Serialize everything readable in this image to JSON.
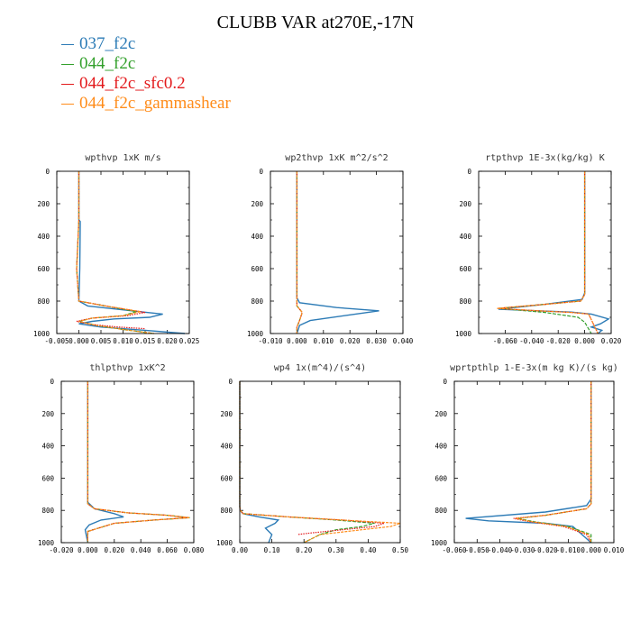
{
  "title": "CLUBB VAR at270E,-17N",
  "legend": [
    {
      "label": "037_f2c",
      "color": "#2c7bb6"
    },
    {
      "label": "044_f2c",
      "color": "#33a02c"
    },
    {
      "label": "044_f2c_sfc0.2",
      "color": "#e31a1c"
    },
    {
      "label": "044_f2c_gammashear",
      "color": "#ff8c1a"
    }
  ],
  "chart_data": [
    {
      "type": "line",
      "title": "wpthvp  1xK m/s",
      "xlim": [
        -0.005,
        0.025
      ],
      "ylim": [
        1000,
        0
      ],
      "xticks": [
        "-0.005",
        "0.000",
        "0.005",
        "0.010",
        "0.015",
        "0.020",
        "0.025"
      ],
      "yticks": [
        "0",
        "200",
        "400",
        "600",
        "800",
        "1000"
      ],
      "series": [
        {
          "name": "037_f2c",
          "x": [
            0.0,
            0.0,
            0.0003,
            0.0003,
            0.0002,
            0.0,
            0.002,
            0.012,
            0.019,
            0.016,
            0.008,
            0.003,
            0.0,
            0.005,
            0.015,
            0.024
          ],
          "y": [
            0,
            300,
            310,
            330,
            600,
            800,
            830,
            860,
            880,
            900,
            910,
            925,
            940,
            960,
            980,
            1000
          ]
        },
        {
          "name": "044_f2c",
          "x": [
            0.0,
            0.0,
            -0.0005,
            0.0,
            0.006,
            0.013,
            0.01,
            0.003,
            0.0,
            0.004,
            0.01,
            0.017
          ],
          "y": [
            0,
            300,
            600,
            800,
            830,
            865,
            890,
            905,
            925,
            950,
            975,
            1000
          ]
        },
        {
          "name": "044_f2c_sfc0.2",
          "x": [
            0.0,
            0.0,
            -0.0005,
            0.0,
            0.006,
            0.015,
            0.011,
            0.003,
            -0.0005,
            0.003,
            0.009,
            0.015
          ],
          "y": [
            0,
            300,
            600,
            800,
            830,
            870,
            890,
            905,
            925,
            945,
            960,
            970
          ]
        },
        {
          "name": "044_f2c_gammashear",
          "x": [
            0.0,
            0.0,
            -0.0005,
            0.0,
            0.006,
            0.014,
            0.01,
            0.003,
            0.0,
            0.004,
            0.01,
            0.017
          ],
          "y": [
            0,
            300,
            600,
            800,
            830,
            865,
            890,
            905,
            925,
            950,
            975,
            1000
          ]
        }
      ]
    },
    {
      "type": "line",
      "title": "wp2thvp  1xK m^2/s^2",
      "xlim": [
        -0.01,
        0.04
      ],
      "ylim": [
        1000,
        0
      ],
      "xticks": [
        "-0.010",
        "0.000",
        "0.010",
        "0.020",
        "0.030",
        "0.040"
      ],
      "yticks": [
        "0",
        "200",
        "400",
        "600",
        "800",
        "1000"
      ],
      "series": [
        {
          "name": "037_f2c",
          "x": [
            0.0,
            0.0,
            0.001,
            0.015,
            0.031,
            0.02,
            0.005,
            0.001,
            0.0
          ],
          "y": [
            0,
            780,
            810,
            840,
            860,
            885,
            920,
            950,
            1000
          ]
        },
        {
          "name": "044_f2c",
          "x": [
            0.0,
            0.0,
            0.002,
            0.001,
            0.0,
            0.0
          ],
          "y": [
            0,
            830,
            870,
            920,
            960,
            1000
          ]
        },
        {
          "name": "044_f2c_sfc0.2",
          "x": [
            0.0,
            0.0,
            0.002,
            0.001,
            0.0,
            0.0
          ],
          "y": [
            0,
            830,
            870,
            920,
            960,
            1000
          ]
        },
        {
          "name": "044_f2c_gammashear",
          "x": [
            0.0,
            0.0,
            0.002,
            0.001,
            0.0,
            0.0
          ],
          "y": [
            0,
            830,
            870,
            920,
            960,
            1000
          ]
        }
      ]
    },
    {
      "type": "line",
      "title": "rtpthvp  1E-3x(kg/kg) K",
      "xlim": [
        -0.08,
        0.02
      ],
      "ylim": [
        1000,
        0
      ],
      "xticks": [
        "-0.060",
        "-0.040",
        "-0.020",
        "0.000",
        "0.020"
      ],
      "yticks": [
        "0",
        "200",
        "400",
        "600",
        "800",
        "1000"
      ],
      "series": [
        {
          "name": "037_f2c",
          "x": [
            0.0,
            0.0,
            -0.002,
            -0.03,
            -0.065,
            -0.035,
            -0.01,
            0.005,
            0.018,
            0.012,
            0.005,
            0.013,
            0.01
          ],
          "y": [
            0,
            750,
            790,
            820,
            850,
            860,
            868,
            880,
            910,
            940,
            960,
            980,
            1000
          ]
        },
        {
          "name": "044_f2c",
          "x": [
            0.0,
            0.0,
            -0.003,
            -0.03,
            -0.065,
            -0.03,
            -0.005,
            0.0,
            0.005
          ],
          "y": [
            0,
            760,
            800,
            820,
            845,
            870,
            900,
            930,
            1000
          ]
        },
        {
          "name": "044_f2c_sfc0.2",
          "x": [
            0.0,
            0.0,
            -0.003,
            -0.03,
            -0.066,
            -0.035,
            -0.01,
            0.003,
            0.01
          ],
          "y": [
            0,
            760,
            800,
            820,
            845,
            860,
            870,
            880,
            1000
          ]
        },
        {
          "name": "044_f2c_gammashear",
          "x": [
            0.0,
            0.0,
            -0.003,
            -0.03,
            -0.066,
            -0.035,
            -0.01,
            0.003,
            0.01
          ],
          "y": [
            0,
            760,
            800,
            820,
            845,
            860,
            870,
            880,
            1000
          ]
        }
      ]
    },
    {
      "type": "line",
      "title": "thlpthvp  1xK^2",
      "xlim": [
        -0.02,
        0.08
      ],
      "ylim": [
        1000,
        0
      ],
      "xticks": [
        "-0.020",
        "0.000",
        "0.020",
        "0.040",
        "0.060",
        "0.080"
      ],
      "yticks": [
        "0",
        "200",
        "400",
        "600",
        "800",
        "1000"
      ],
      "series": [
        {
          "name": "037_f2c",
          "x": [
            0.0,
            0.0,
            0.005,
            0.02,
            0.027,
            0.01,
            0.001,
            -0.002,
            0.0
          ],
          "y": [
            0,
            750,
            790,
            820,
            840,
            860,
            890,
            920,
            1000
          ]
        },
        {
          "name": "044_f2c",
          "x": [
            0.0,
            0.0,
            0.005,
            0.03,
            0.06,
            0.077,
            0.05,
            0.02,
            0.0,
            0.0
          ],
          "y": [
            0,
            760,
            790,
            815,
            830,
            845,
            860,
            880,
            930,
            1000
          ]
        },
        {
          "name": "044_f2c_sfc0.2",
          "x": [
            0.0,
            0.0,
            0.005,
            0.03,
            0.06,
            0.075,
            0.05,
            0.02,
            0.0,
            0.0
          ],
          "y": [
            0,
            760,
            790,
            815,
            830,
            845,
            860,
            880,
            930,
            1000
          ]
        },
        {
          "name": "044_f2c_gammashear",
          "x": [
            0.0,
            0.0,
            0.005,
            0.03,
            0.06,
            0.077,
            0.05,
            0.02,
            0.0,
            0.0
          ],
          "y": [
            0,
            760,
            790,
            815,
            830,
            845,
            860,
            880,
            930,
            1000
          ]
        }
      ]
    },
    {
      "type": "line",
      "title": "wp4  1x(m^4)/(s^4)",
      "xlim": [
        0.0,
        0.5
      ],
      "ylim": [
        1000,
        0
      ],
      "xticks": [
        "0.00",
        "0.10",
        "0.20",
        "0.30",
        "0.40",
        "0.50"
      ],
      "yticks": [
        "0",
        "200",
        "400",
        "600",
        "800",
        "1000"
      ],
      "series": [
        {
          "name": "037_f2c",
          "x": [
            0.0,
            0.0,
            0.001,
            0.01,
            0.06,
            0.12,
            0.11,
            0.08,
            0.1,
            0.09
          ],
          "y": [
            0,
            780,
            800,
            820,
            840,
            860,
            880,
            910,
            950,
            1000
          ]
        },
        {
          "name": "044_f2c",
          "x": [
            0.0,
            0.0,
            0.002,
            0.01,
            0.15,
            0.3,
            0.42,
            0.38,
            0.3,
            0.25,
            0.2
          ],
          "y": [
            0,
            780,
            800,
            820,
            840,
            860,
            880,
            900,
            920,
            950,
            1000
          ]
        },
        {
          "name": "044_f2c_sfc0.2",
          "x": [
            0.0,
            0.0,
            0.002,
            0.01,
            0.15,
            0.32,
            0.45,
            0.42,
            0.32,
            0.22,
            0.18
          ],
          "y": [
            0,
            780,
            800,
            820,
            840,
            860,
            880,
            900,
            920,
            940,
            950
          ]
        },
        {
          "name": "044_f2c_gammashear",
          "x": [
            0.0,
            0.0,
            0.002,
            0.01,
            0.15,
            0.32,
            0.5,
            0.47,
            0.38,
            0.25,
            0.2
          ],
          "y": [
            0,
            780,
            800,
            820,
            840,
            860,
            880,
            900,
            920,
            950,
            1000
          ]
        }
      ]
    },
    {
      "type": "line",
      "title": "wprtpthlp  1-E-3x(m kg K)/(s kg)",
      "xlim": [
        -0.06,
        0.01
      ],
      "ylim": [
        1000,
        0
      ],
      "xticks": [
        "-0.060",
        "-0.050",
        "-0.040",
        "-0.030",
        "-0.020",
        "-0.010",
        "0.000",
        "0.010"
      ],
      "yticks": [
        "0",
        "200",
        "400",
        "600",
        "800",
        "1000"
      ],
      "series": [
        {
          "name": "037_f2c",
          "x": [
            0.0,
            0.0,
            -0.002,
            -0.02,
            -0.055,
            -0.045,
            -0.02,
            -0.008,
            -0.004,
            0.0
          ],
          "y": [
            0,
            730,
            770,
            810,
            850,
            865,
            880,
            900,
            950,
            1000
          ]
        },
        {
          "name": "044_f2c",
          "x": [
            0.0,
            0.0,
            -0.002,
            -0.02,
            -0.032,
            -0.025,
            -0.01,
            0.0,
            0.0
          ],
          "y": [
            0,
            760,
            790,
            830,
            850,
            870,
            900,
            950,
            1000
          ]
        },
        {
          "name": "044_f2c_sfc0.2",
          "x": [
            0.0,
            0.0,
            -0.002,
            -0.02,
            -0.034,
            -0.027,
            -0.012,
            -0.002,
            0.0
          ],
          "y": [
            0,
            760,
            790,
            830,
            850,
            870,
            900,
            950,
            1000
          ]
        },
        {
          "name": "044_f2c_gammashear",
          "x": [
            0.0,
            0.0,
            -0.002,
            -0.02,
            -0.033,
            -0.026,
            -0.011,
            -0.001,
            0.0
          ],
          "y": [
            0,
            760,
            790,
            830,
            850,
            870,
            900,
            950,
            1000
          ]
        }
      ]
    }
  ]
}
